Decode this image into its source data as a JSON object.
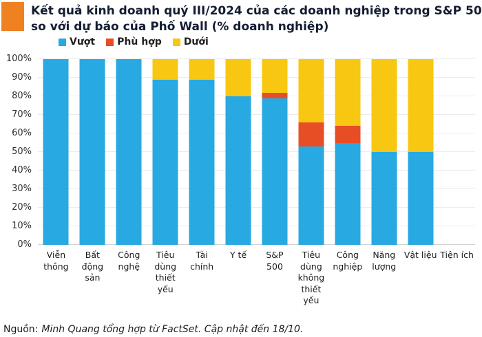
{
  "header": {
    "title_lines": [
      "Kết quả kinh doanh quý III/2024 của các doanh nghiệp trong S&P 500",
      "so với dự báo của Phố Wall (% doanh nghiệp)"
    ],
    "accent_color": "#F08121"
  },
  "footer": {
    "source_prefix": "Nguồn:",
    "source_text": "Minh Quang tổng hợp từ FactSet. Cập nhật đến 18/10."
  },
  "chart_data": {
    "type": "bar",
    "stacked": true,
    "title": "Kết quả kinh doanh quý III/2024 của các doanh nghiệp trong S&P 500 so với dự báo của Phố Wall (% doanh nghiệp)",
    "categories": [
      "Viễn thông",
      "Bất động sản",
      "Công nghệ",
      "Tiêu dùng thiết yếu",
      "Tài chính",
      "Y tế",
      "S&P 500",
      "Tiêu dùng không thiết yếu",
      "Công nghiệp",
      "Năng lượng",
      "Vật liệu",
      "Tiện ích"
    ],
    "series": [
      {
        "name": "Vượt",
        "color": "#29A9E1",
        "values": [
          100,
          100,
          100,
          89,
          89,
          80,
          79,
          53,
          55,
          50,
          50,
          0
        ]
      },
      {
        "name": "Phù hợp",
        "color": "#E84E25",
        "values": [
          0,
          0,
          0,
          0,
          0,
          0,
          3,
          13,
          9,
          0,
          0,
          0
        ]
      },
      {
        "name": "Dưới",
        "color": "#F8C711",
        "values": [
          0,
          0,
          0,
          11,
          11,
          20,
          18,
          34,
          36,
          50,
          50,
          0
        ]
      }
    ],
    "xlabel": "",
    "ylabel": "",
    "ylim": [
      0,
      100
    ],
    "ytick_step": 10,
    "ytick_suffix": "%",
    "grid": true,
    "legend_position": "top-left",
    "note": "Tiện ích has no bar (no data shown)"
  }
}
